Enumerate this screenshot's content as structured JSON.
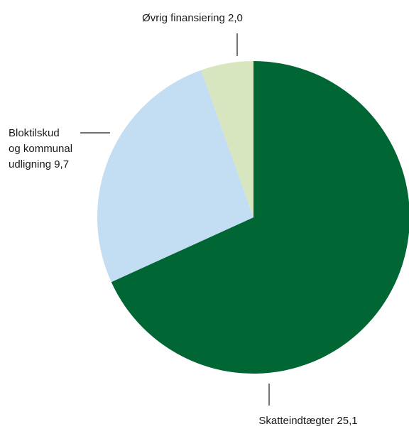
{
  "chart_data": {
    "type": "pie",
    "title": "",
    "start_angle_deg": 0,
    "direction": "clockwise",
    "slices": [
      {
        "label": "Skatteindtægter 25,1",
        "name": "Skatteindtægter",
        "value": 25.1,
        "color": "#006633"
      },
      {
        "label_lines": [
          "Bloktilskud",
          "og kommunal",
          "udligning 9,7"
        ],
        "name": "Bloktilskud og kommunal udligning",
        "value": 9.7,
        "color": "#c3ddf3"
      },
      {
        "label": "Øvrig finansiering 2,0",
        "name": "Øvrig finansiering",
        "value": 2.0,
        "color": "#d7e6bf"
      }
    ]
  }
}
